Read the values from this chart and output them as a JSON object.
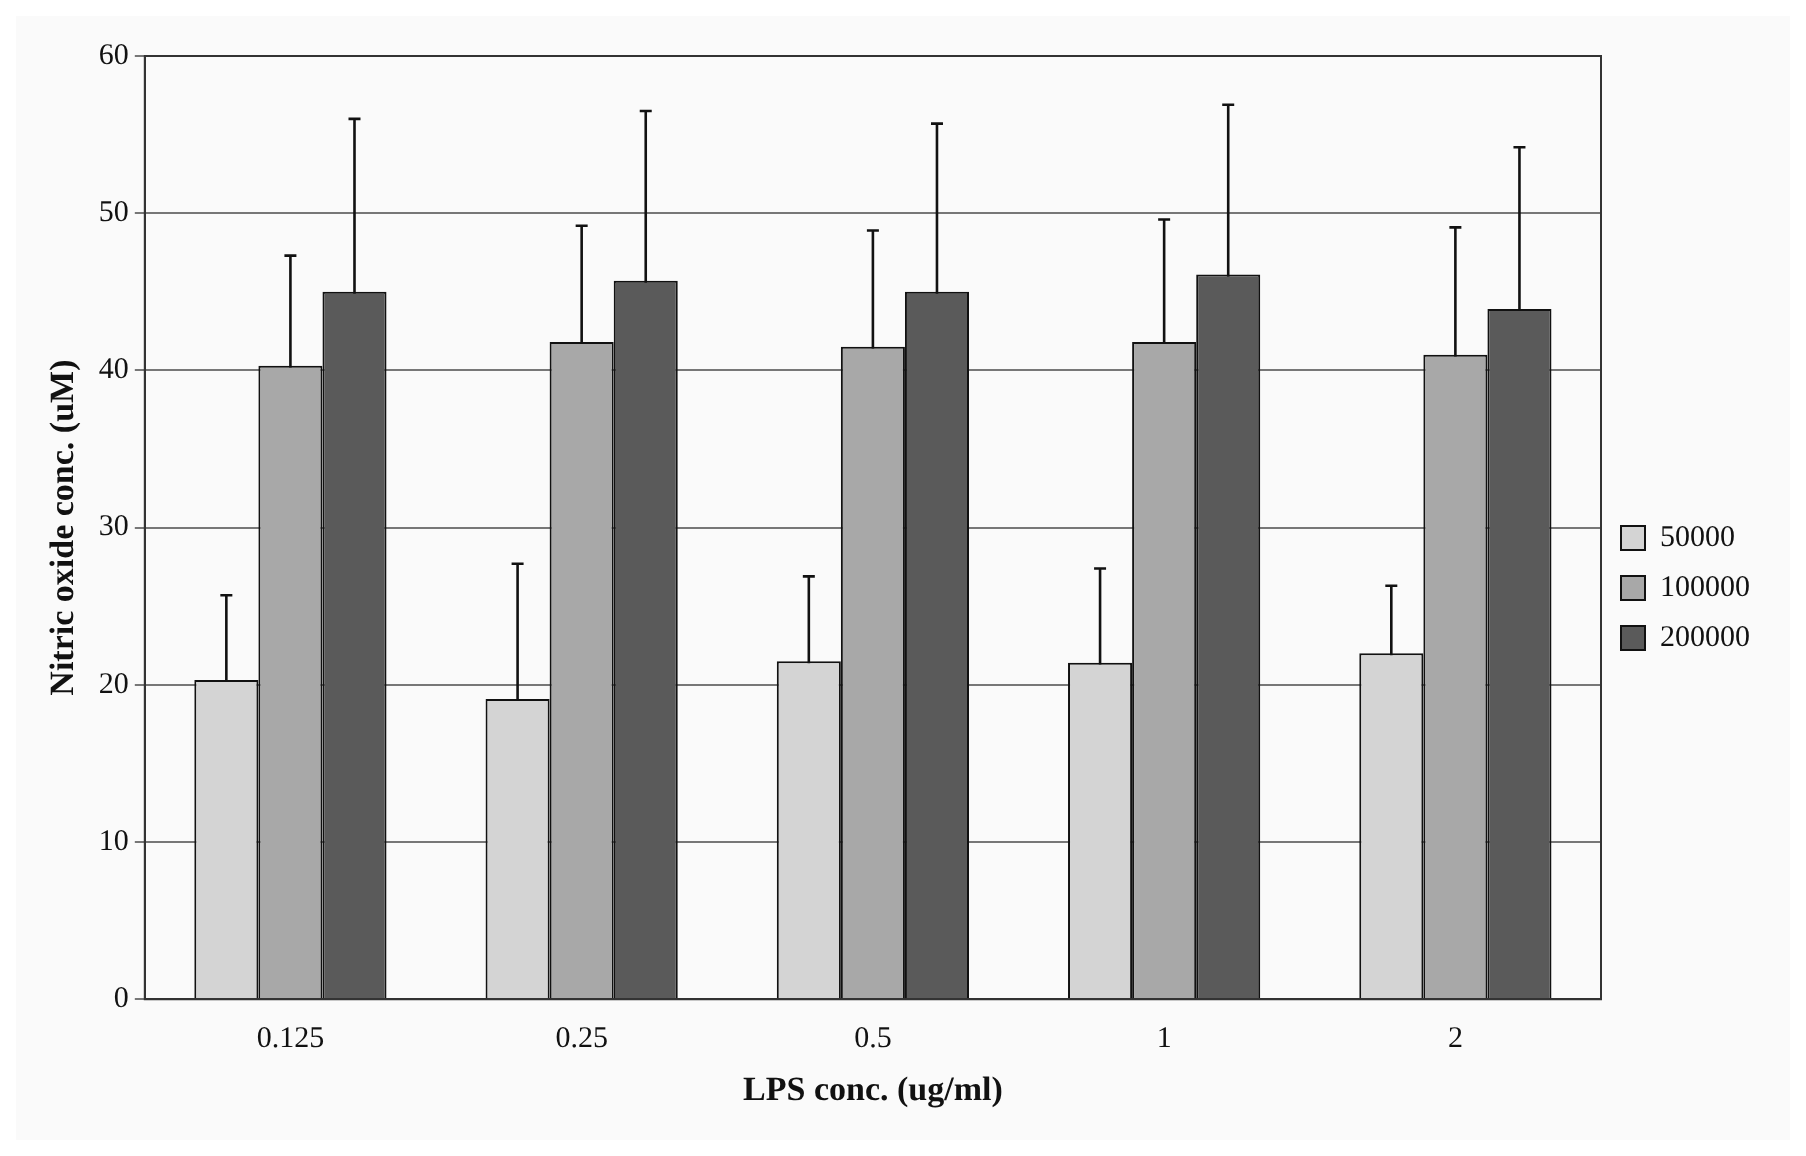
{
  "chart_data": {
    "type": "bar",
    "xlabel": "LPS conc. (ug/ml)",
    "ylabel": "Nitric oxide conc. (uM)",
    "categories": [
      "0.125",
      "0.25",
      "0.5",
      "1",
      "2"
    ],
    "series": [
      {
        "name": "50000",
        "color": "#d4d4d4",
        "values": [
          20.3,
          19.1,
          21.5,
          21.4,
          22.0
        ],
        "errors": [
          5.4,
          8.6,
          5.4,
          6.0,
          4.3
        ]
      },
      {
        "name": "100000",
        "color": "#a8a8a8",
        "values": [
          40.3,
          41.8,
          41.5,
          41.8,
          41.0
        ],
        "errors": [
          7.0,
          7.4,
          7.4,
          7.8,
          8.1
        ]
      },
      {
        "name": "200000",
        "color": "#5a5a5a",
        "values": [
          45.0,
          45.7,
          45.0,
          46.1,
          43.9
        ],
        "errors": [
          11.0,
          10.8,
          10.7,
          10.8,
          10.3
        ]
      }
    ],
    "ylim": [
      0,
      60
    ],
    "yticks": [
      0,
      10,
      20,
      30,
      40,
      50,
      60
    ],
    "grid": "y",
    "legend": "right"
  }
}
